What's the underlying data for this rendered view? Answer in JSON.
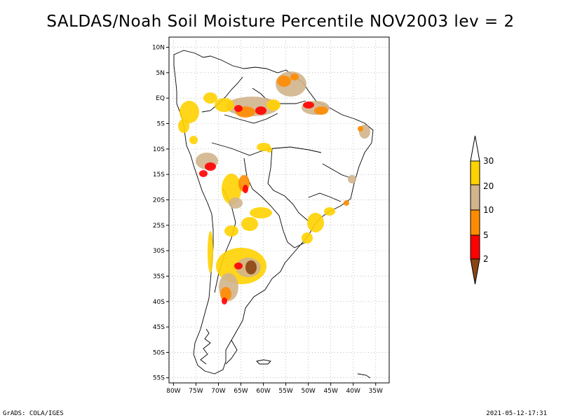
{
  "title": "SALDAS/Noah Soil Moisture Percentile NOV2003 lev = 2",
  "footer": {
    "left": "GrADS: COLA/IGES",
    "right": "2021-05-12-17:31"
  },
  "map": {
    "lon_range": [
      -81,
      -32
    ],
    "lat_range": [
      -56,
      12
    ],
    "grid": true,
    "x_ticks": [
      "80W",
      "75W",
      "70W",
      "65W",
      "60W",
      "55W",
      "50W",
      "45W",
      "40W",
      "35W"
    ],
    "x_tick_values": [
      -80,
      -75,
      -70,
      -65,
      -60,
      -55,
      -50,
      -45,
      -40,
      -35
    ],
    "y_ticks": [
      "10N",
      "5N",
      "EQ",
      "5S",
      "10S",
      "15S",
      "20S",
      "25S",
      "30S",
      "35S",
      "40S",
      "45S",
      "50S",
      "55S"
    ],
    "y_tick_values": [
      10,
      5,
      0,
      -5,
      -10,
      -15,
      -20,
      -25,
      -30,
      -35,
      -40,
      -45,
      -50,
      -55
    ]
  },
  "legend": {
    "labels": [
      "30",
      "20",
      "10",
      "5",
      "2"
    ],
    "colors": {
      "above": "#ffffff",
      "b20_30": "#ffd200",
      "b10_20": "#d2b48c",
      "b5_10": "#ff8c00",
      "b2_5": "#ff0000",
      "below": "#8b4513"
    }
  }
}
